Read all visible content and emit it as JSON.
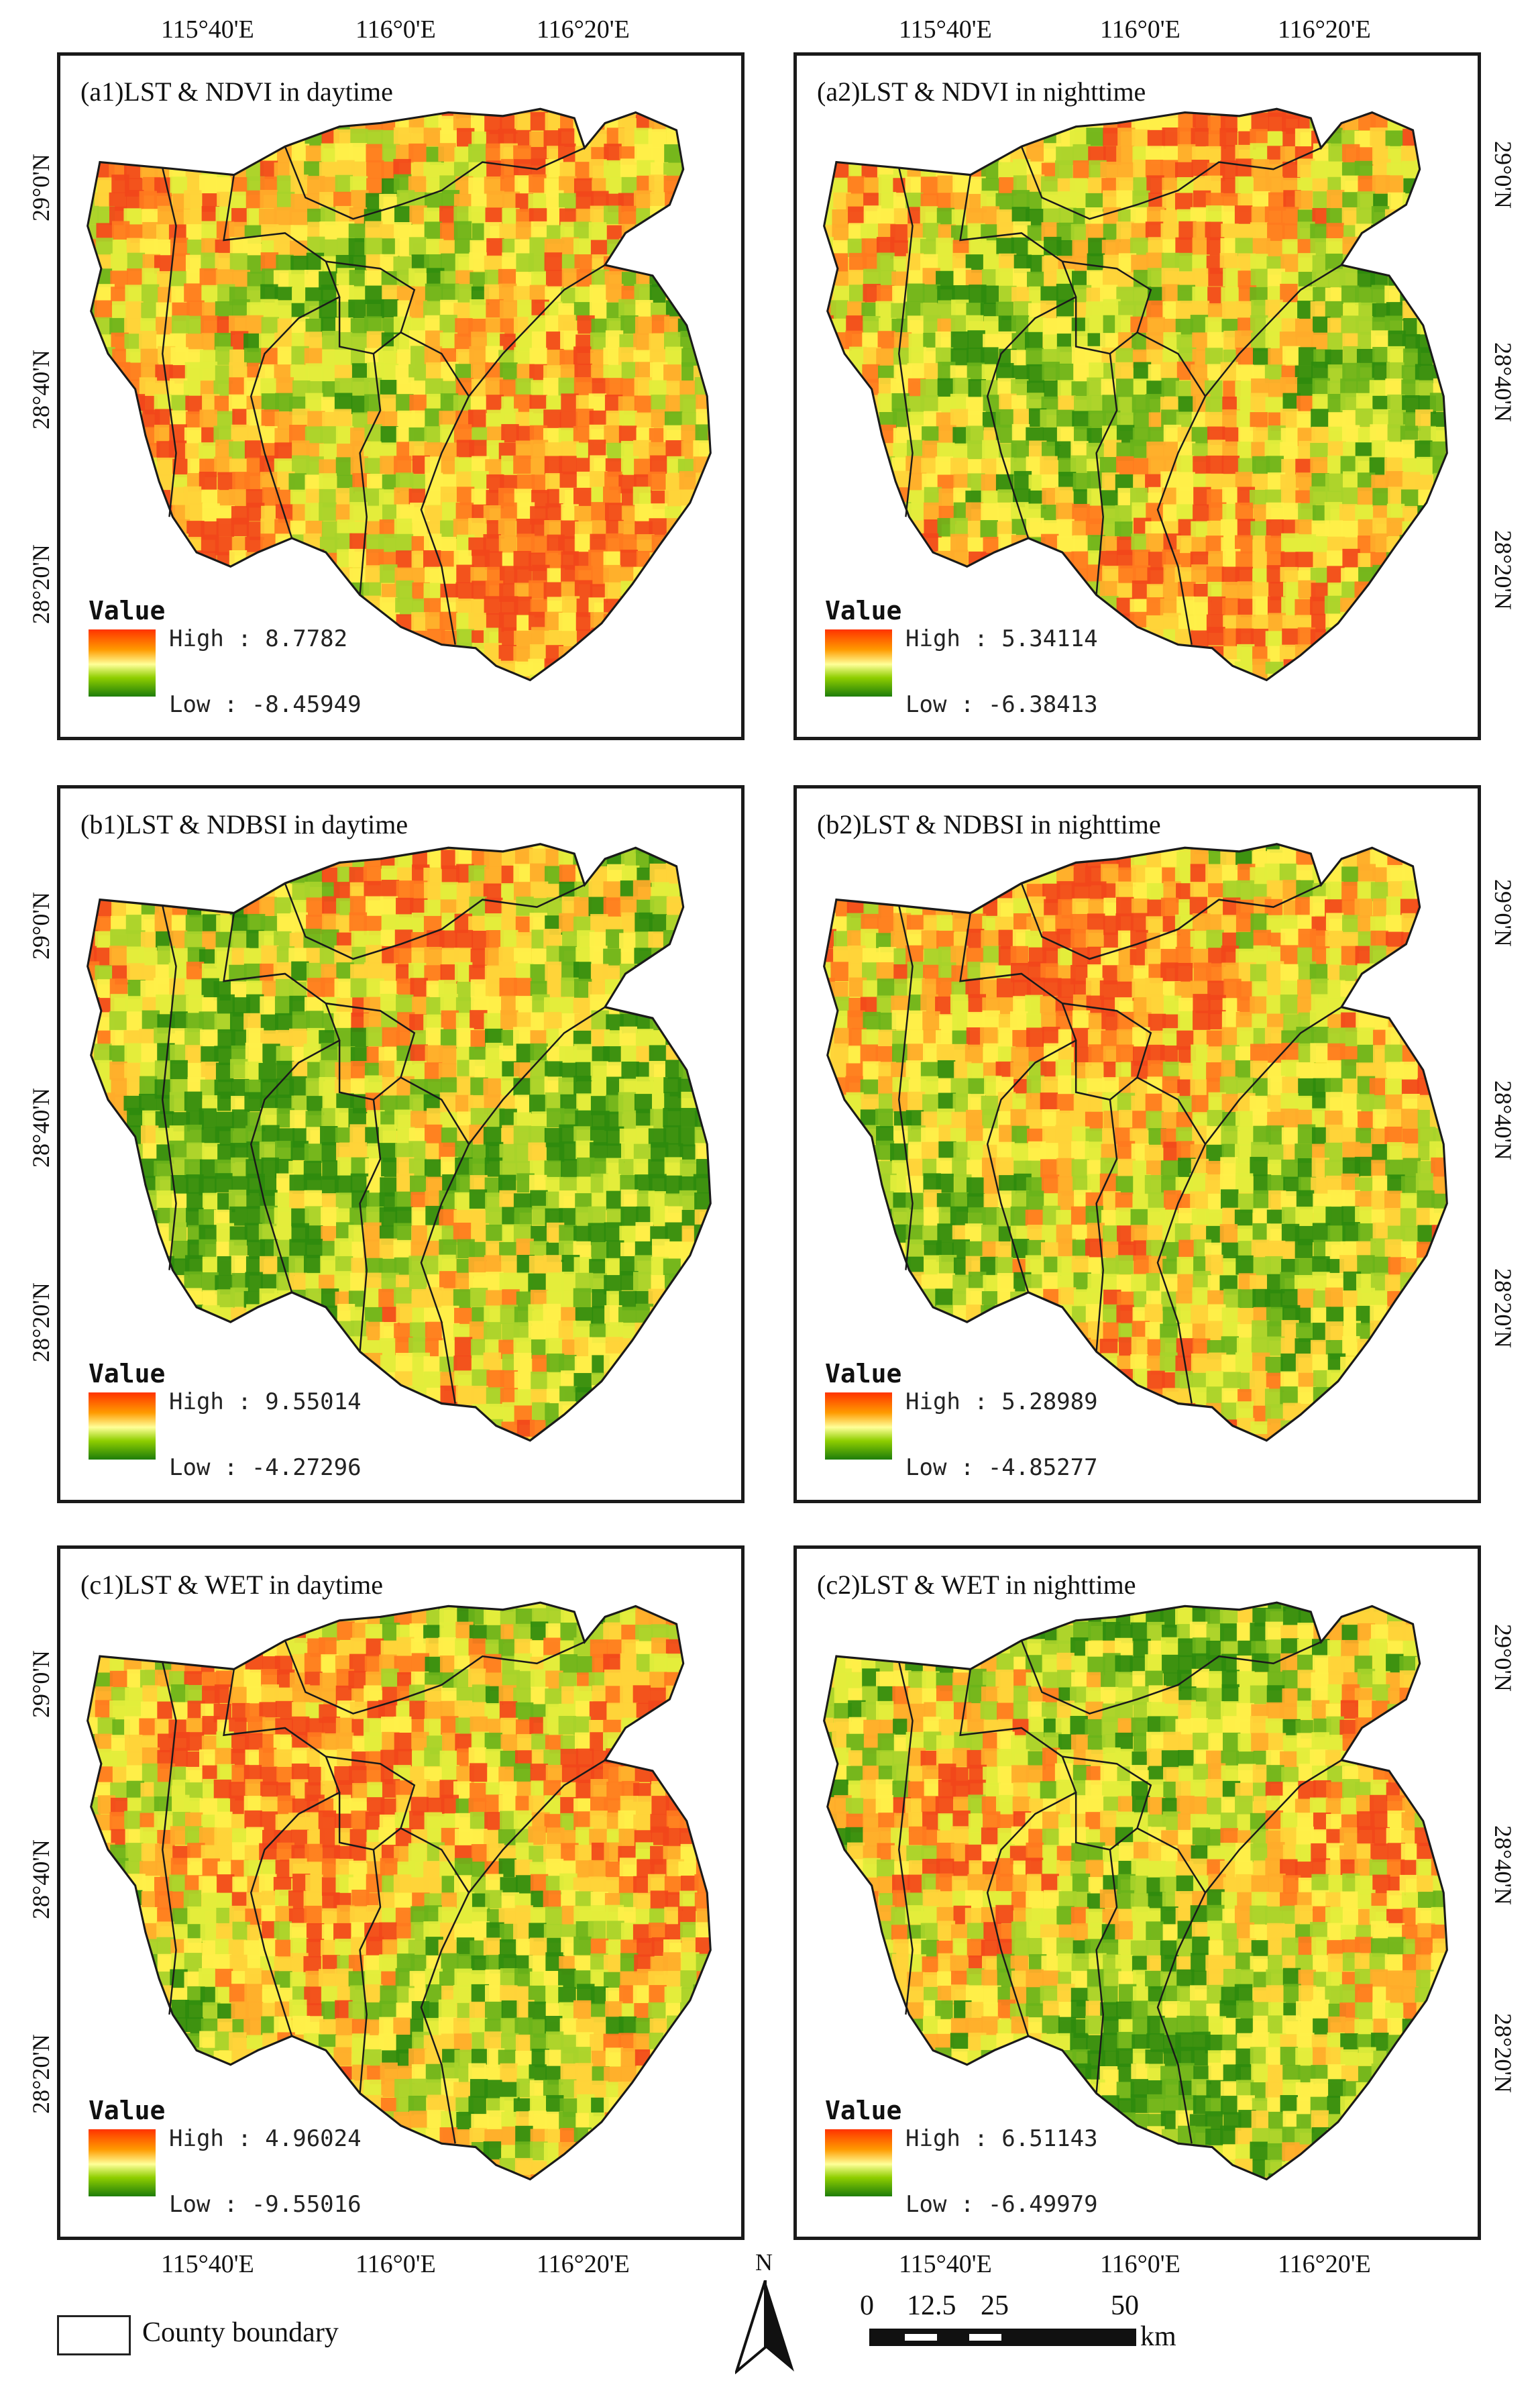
{
  "map": {
    "longitude_labels": [
      "115°40'E",
      "116°0'E",
      "116°20'E"
    ],
    "latitude_labels": [
      "29°0'N",
      "28°40'N",
      "28°20'N"
    ],
    "legend_title": "Value",
    "colors": {
      "high": "#ff3300",
      "mid": "#ffff66",
      "low": "#1e7d0a",
      "boundary": "#1a1a1a"
    },
    "panels": [
      {
        "title": "(a1)LST & NDVI in daytime",
        "high": "High : 8.7782",
        "low": "Low : -8.45949"
      },
      {
        "title": "(a2)LST & NDVI in nighttime",
        "high": "High : 5.34114",
        "low": "Low : -6.38413"
      },
      {
        "title": "(b1)LST & NDBSI in daytime",
        "high": "High : 9.55014",
        "low": "Low : -4.27296"
      },
      {
        "title": "(b2)LST & NDBSI in nighttime",
        "high": "High : 5.28989",
        "low": "Low : -4.85277"
      },
      {
        "title": "(c1)LST & WET in daytime",
        "high": "High : 4.96024",
        "low": "Low : -9.55016"
      },
      {
        "title": "(c2)LST & WET in nighttime",
        "high": "High : 6.51143",
        "low": "Low : -6.49979"
      }
    ]
  },
  "footer": {
    "legend_label": "County boundary",
    "north_label": "N",
    "scale_ticks": [
      "0",
      "12.5",
      "25",
      "50"
    ],
    "scale_unit": "km",
    "north-arrow-icon": "north-arrow-icon"
  }
}
